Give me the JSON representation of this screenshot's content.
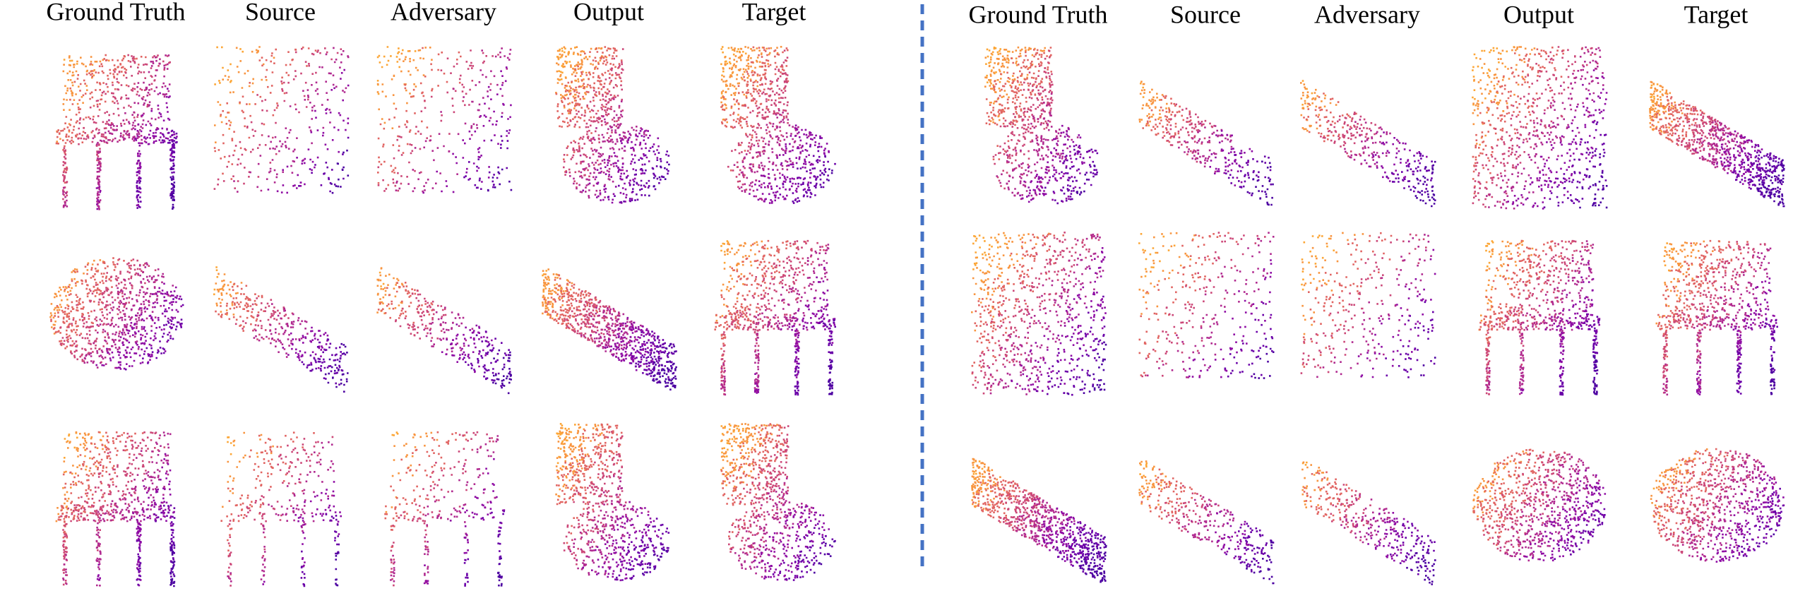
{
  "left": {
    "headers": [
      "Ground Truth",
      "Source",
      "Adversary",
      "Output",
      "Target"
    ]
  },
  "right": {
    "headers": [
      "Ground Truth",
      "Source",
      "Adversary",
      "Output",
      "Target"
    ]
  }
}
